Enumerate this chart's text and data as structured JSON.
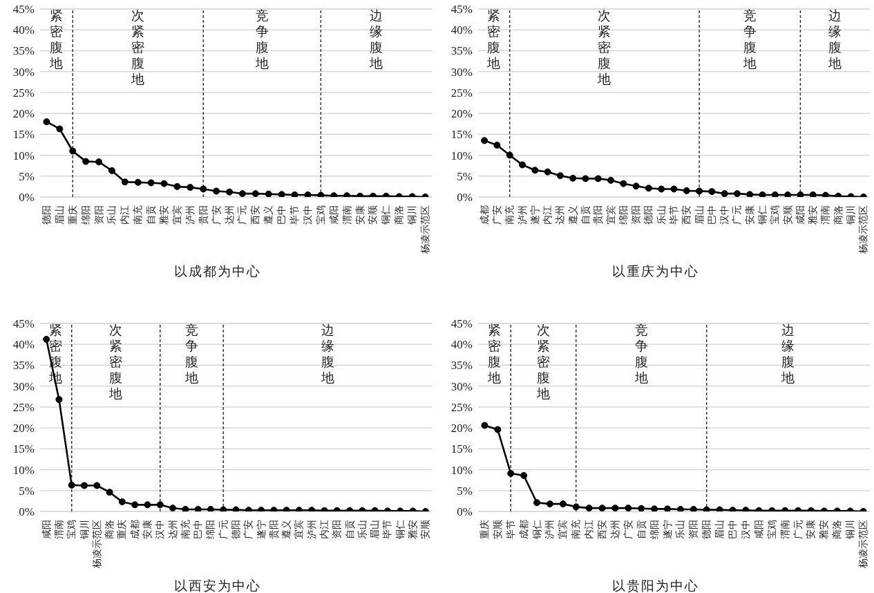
{
  "chart_data": [
    {
      "type": "line",
      "title": "以成都为中心",
      "categories": [
        "德阳",
        "眉山",
        "重庆",
        "绵阳",
        "资阳",
        "乐山",
        "内江",
        "南充",
        "自贡",
        "雅安",
        "宜宾",
        "泸州",
        "贵阳",
        "广安",
        "达州",
        "广元",
        "西安",
        "遵义",
        "巴中",
        "毕节",
        "汉中",
        "宝鸡",
        "咸阳",
        "渭南",
        "安康",
        "安顺",
        "铜仁",
        "商洛",
        "铜川",
        "杨凌示范区"
      ],
      "series": [
        {
          "color": "#000000",
          "values": [
            18.0,
            16.3,
            11.0,
            8.5,
            8.4,
            6.3,
            3.6,
            3.5,
            3.4,
            3.2,
            2.5,
            2.3,
            1.9,
            1.4,
            1.2,
            0.8,
            0.8,
            0.7,
            0.6,
            0.5,
            0.5,
            0.4,
            0.3,
            0.3,
            0.2,
            0.2,
            0.2,
            0.1,
            0.1,
            0.0
          ]
        }
      ],
      "ylim": [
        0,
        45
      ],
      "yticks": [
        {
          "value": 0,
          "label": "0%"
        },
        {
          "value": 5,
          "label": "5%"
        },
        {
          "value": 10,
          "label": "10%"
        },
        {
          "value": 15,
          "label": "15%"
        },
        {
          "value": 20,
          "label": "20%"
        },
        {
          "value": 25,
          "label": "25%"
        },
        {
          "value": 30,
          "label": "30%"
        },
        {
          "value": 35,
          "label": "35%"
        },
        {
          "value": 40,
          "label": "40%"
        },
        {
          "value": 45,
          "label": "45%"
        }
      ],
      "grid": "y",
      "marker": "circle",
      "ref_lines": [
        {
          "axis": "x",
          "value": "重庆",
          "line_style": "dashed"
        },
        {
          "axis": "x",
          "value": "贵阳",
          "line_style": "dashed"
        },
        {
          "axis": "x",
          "value": "宝鸡",
          "line_style": "dashed"
        }
      ],
      "annotations": [
        "紧密腹地",
        "次紧密腹地",
        "竞争腹地",
        "边缘腹地"
      ]
    },
    {
      "type": "line",
      "title": "以重庆为中心",
      "categories": [
        "成都",
        "广安",
        "南充",
        "泸州",
        "遂宁",
        "内江",
        "达州",
        "遵义",
        "自贡",
        "贵阳",
        "宜宾",
        "绵阳",
        "资阳",
        "德阳",
        "乐山",
        "毕节",
        "西安",
        "眉山",
        "巴中",
        "汉中",
        "广元",
        "安康",
        "铜仁",
        "宝鸡",
        "安顺",
        "咸阳",
        "雅安",
        "渭南",
        "商洛",
        "铜川",
        "杨凌示范区"
      ],
      "series": [
        {
          "color": "#000000",
          "values": [
            13.5,
            12.4,
            10.0,
            7.7,
            6.4,
            6.0,
            5.1,
            4.5,
            4.4,
            4.4,
            4.0,
            3.2,
            2.6,
            2.1,
            1.9,
            1.9,
            1.5,
            1.4,
            1.3,
            0.8,
            0.8,
            0.6,
            0.5,
            0.5,
            0.5,
            0.5,
            0.5,
            0.4,
            0.2,
            0.1,
            0.0
          ]
        }
      ],
      "ylim": [
        0,
        45
      ],
      "yticks": [
        {
          "value": 0,
          "label": "0%"
        },
        {
          "value": 5,
          "label": "5%"
        },
        {
          "value": 10,
          "label": "10%"
        },
        {
          "value": 15,
          "label": "15%"
        },
        {
          "value": 20,
          "label": "20%"
        },
        {
          "value": 25,
          "label": "25%"
        },
        {
          "value": 30,
          "label": "30%"
        },
        {
          "value": 35,
          "label": "35%"
        },
        {
          "value": 40,
          "label": "40%"
        },
        {
          "value": 45,
          "label": "45%"
        }
      ],
      "grid": "y",
      "marker": "circle",
      "ref_lines": [
        {
          "axis": "x",
          "value": "南充",
          "line_style": "dashed"
        },
        {
          "axis": "x",
          "value": "眉山",
          "line_style": "dashed"
        },
        {
          "axis": "x",
          "value": "咸阳",
          "line_style": "dashed"
        }
      ],
      "annotations": [
        "紧密腹地",
        "次紧密腹地",
        "竞争腹地",
        "边缘腹地"
      ]
    },
    {
      "type": "line",
      "title": "以西安为中心",
      "categories": [
        "咸阳",
        "渭南",
        "宝鸡",
        "铜川",
        "杨凌示范区",
        "商洛",
        "重庆",
        "成都",
        "安康",
        "汉中",
        "达州",
        "南充",
        "巴中",
        "绵阳",
        "广元",
        "德阳",
        "广安",
        "遂宁",
        "贵阳",
        "遵义",
        "宜宾",
        "泸州",
        "内江",
        "资阳",
        "自贡",
        "乐山",
        "眉山",
        "毕节",
        "铜仁",
        "雅安",
        "安顺"
      ],
      "series": [
        {
          "color": "#000000",
          "values": [
            41.2,
            26.8,
            6.3,
            6.2,
            6.2,
            4.6,
            2.3,
            1.6,
            1.6,
            1.6,
            0.8,
            0.5,
            0.5,
            0.5,
            0.4,
            0.4,
            0.3,
            0.3,
            0.3,
            0.3,
            0.3,
            0.3,
            0.2,
            0.2,
            0.2,
            0.2,
            0.2,
            0.1,
            0.1,
            0.1,
            0.0
          ]
        }
      ],
      "ylim": [
        0,
        45
      ],
      "yticks": [
        {
          "value": 0,
          "label": "0%"
        },
        {
          "value": 5,
          "label": "5%"
        },
        {
          "value": 10,
          "label": "10%"
        },
        {
          "value": 15,
          "label": "15%"
        },
        {
          "value": 20,
          "label": "20%"
        },
        {
          "value": 25,
          "label": "25%"
        },
        {
          "value": 30,
          "label": "30%"
        },
        {
          "value": 35,
          "label": "35%"
        },
        {
          "value": 40,
          "label": "40%"
        },
        {
          "value": 45,
          "label": "45%"
        }
      ],
      "grid": "y",
      "marker": "circle",
      "ref_lines": [
        {
          "axis": "x",
          "value": "宝鸡",
          "line_style": "dashed"
        },
        {
          "axis": "x",
          "value": "汉中",
          "line_style": "dashed"
        },
        {
          "axis": "x",
          "value": "广元",
          "line_style": "dashed"
        }
      ],
      "annotations": [
        "紧密腹地",
        "次紧密腹地",
        "竞争腹地",
        "边缘腹地"
      ]
    },
    {
      "type": "line",
      "title": "以贵阳为中心",
      "categories": [
        "重庆",
        "安顺",
        "毕节",
        "成都",
        "铜仁",
        "泸州",
        "宜宾",
        "南充",
        "内江",
        "西安",
        "达州",
        "广安",
        "自贡",
        "绵阳",
        "遂宁",
        "乐山",
        "资阳",
        "德阳",
        "眉山",
        "巴中",
        "汉中",
        "咸阳",
        "宝鸡",
        "渭南",
        "广元",
        "安康",
        "雅安",
        "商洛",
        "铜川",
        "杨凌示范区"
      ],
      "series": [
        {
          "color": "#000000",
          "values": [
            20.6,
            19.6,
            9.1,
            8.6,
            2.1,
            1.8,
            1.8,
            1.1,
            0.8,
            0.8,
            0.8,
            0.8,
            0.7,
            0.6,
            0.6,
            0.5,
            0.5,
            0.4,
            0.4,
            0.3,
            0.3,
            0.2,
            0.2,
            0.2,
            0.2,
            0.2,
            0.1,
            0.1,
            0.1,
            0.0
          ]
        }
      ],
      "ylim": [
        0,
        45
      ],
      "yticks": [
        {
          "value": 0,
          "label": "0%"
        },
        {
          "value": 5,
          "label": "5%"
        },
        {
          "value": 10,
          "label": "10%"
        },
        {
          "value": 15,
          "label": "15%"
        },
        {
          "value": 20,
          "label": "20%"
        },
        {
          "value": 25,
          "label": "25%"
        },
        {
          "value": 30,
          "label": "30%"
        },
        {
          "value": 35,
          "label": "35%"
        },
        {
          "value": 40,
          "label": "40%"
        },
        {
          "value": 45,
          "label": "45%"
        }
      ],
      "grid": "y",
      "marker": "circle",
      "ref_lines": [
        {
          "axis": "x",
          "value": "毕节",
          "line_style": "dashed"
        },
        {
          "axis": "x",
          "value": "南充",
          "line_style": "dashed"
        },
        {
          "axis": "x",
          "value": "德阳",
          "line_style": "dashed"
        }
      ],
      "annotations": [
        "紧密腹地",
        "次紧密腹地",
        "竞争腹地",
        "边缘腹地"
      ]
    }
  ]
}
